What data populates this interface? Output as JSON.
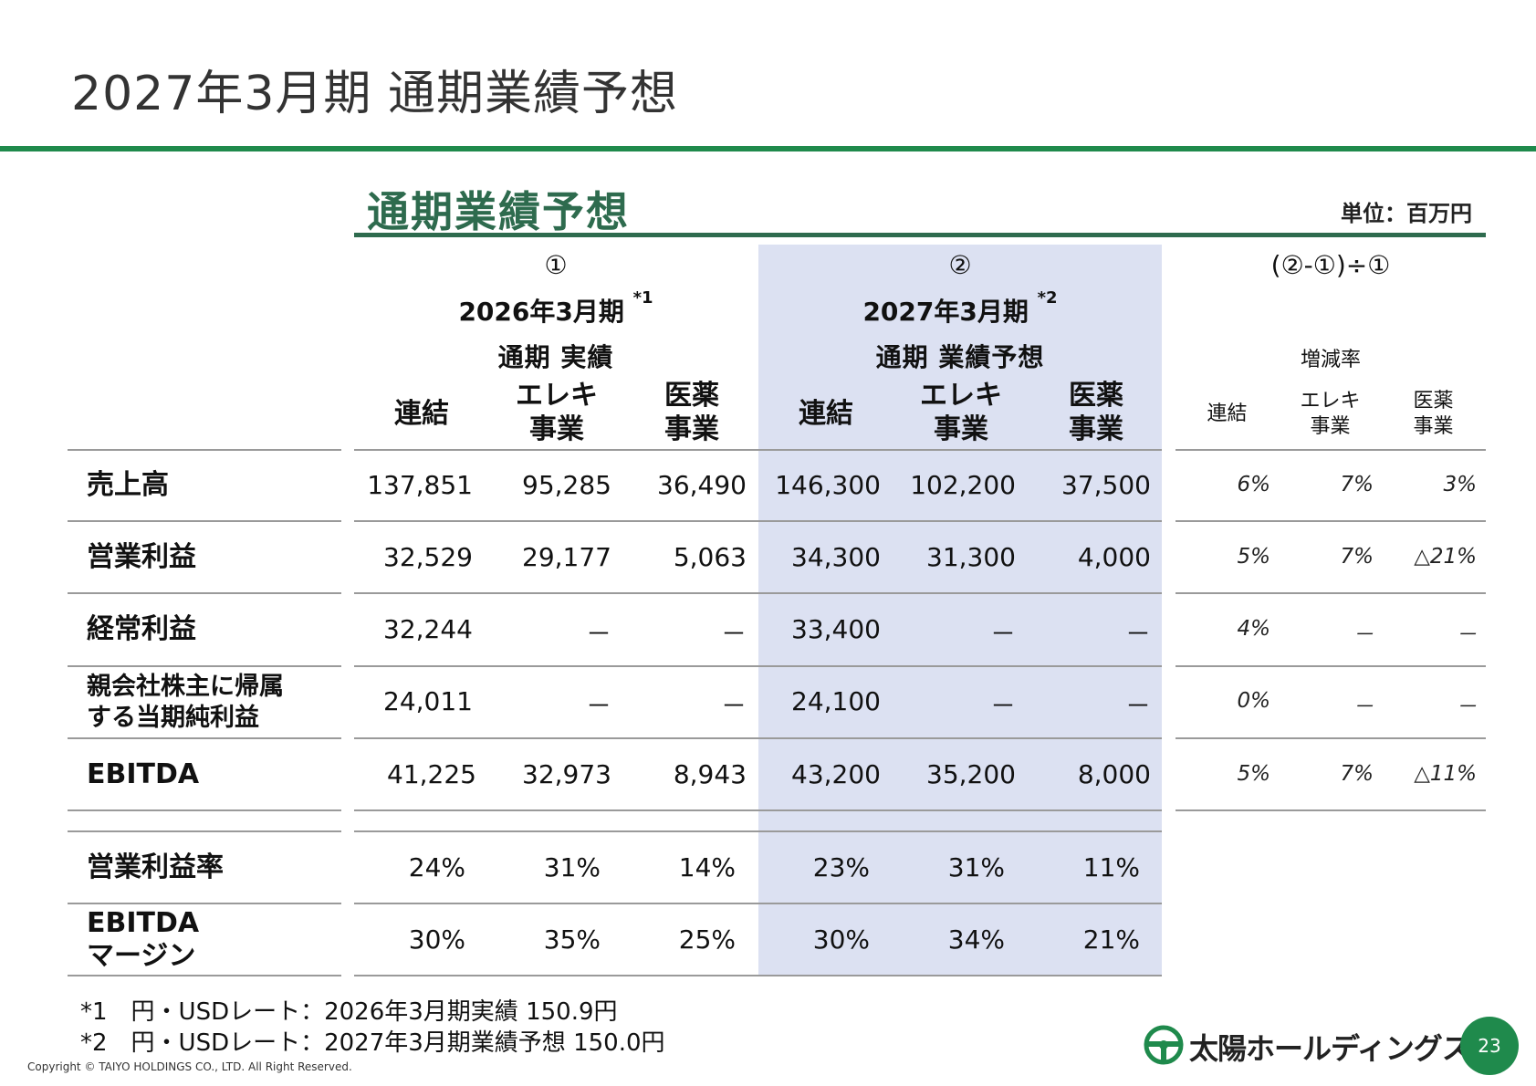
{
  "page_title": "2027年3月期 通期業績予想",
  "section_title": "通期業績予想",
  "unit": "単位：百万円",
  "header": {
    "group1": {
      "circle": "①",
      "period": "2026年3月期",
      "note": "*1",
      "sub": "通期 実績"
    },
    "group2": {
      "circle": "②",
      "period": "2027年3月期",
      "note": "*2",
      "sub": "通期 業績予想"
    },
    "group3": {
      "formula": "(②-①)÷①",
      "sub": "増減率"
    },
    "col_consolidated": "連結",
    "col_elec_1": "エレキ",
    "col_elec_2": "事業",
    "col_med_1": "医薬",
    "col_med_2": "事業"
  },
  "rows": [
    {
      "label": "売上高",
      "v": [
        "137,851",
        "95,285",
        "36,490",
        "146,300",
        "102,200",
        "37,500"
      ],
      "chg": [
        "6%",
        "7%",
        "3%"
      ]
    },
    {
      "label": "営業利益",
      "v": [
        "32,529",
        "29,177",
        "5,063",
        "34,300",
        "31,300",
        "4,000"
      ],
      "chg": [
        "5%",
        "7%",
        "△21%"
      ]
    },
    {
      "label": "経常利益",
      "v": [
        "32,244",
        "－",
        "－",
        "33,400",
        "－",
        "－"
      ],
      "chg": [
        "4%",
        "－",
        "－"
      ]
    },
    {
      "label_1": "親会社株主に帰属",
      "label_2": "する当期純利益",
      "v": [
        "24,011",
        "－",
        "－",
        "24,100",
        "－",
        "－"
      ],
      "chg": [
        "0%",
        "－",
        "－"
      ]
    },
    {
      "label": "EBITDA",
      "v": [
        "41,225",
        "32,973",
        "8,943",
        "43,200",
        "35,200",
        "8,000"
      ],
      "chg": [
        "5%",
        "7%",
        "△11%"
      ]
    }
  ],
  "margin_rows": [
    {
      "label": "営業利益率",
      "v": [
        "24%",
        "31%",
        "14%",
        "23%",
        "31%",
        "11%"
      ]
    },
    {
      "label_1": "EBITDA",
      "label_2": "マージン",
      "v": [
        "30%",
        "35%",
        "25%",
        "30%",
        "34%",
        "21%"
      ]
    }
  ],
  "footnotes": [
    "*1　円・USDレート：2026年3月期実績 150.9円",
    "*2　円・USDレート：2027年3月期業績予想 150.0円"
  ],
  "copyright": "Copyright © TAIYO HOLDINGS CO., LTD.  All Right Reserved.",
  "logo_text": "太陽ホールディングス",
  "page_number": "23",
  "colors": {
    "accent_green": "#1f8a4c",
    "section_green": "#2e6b4e",
    "band_blue": "#dce1f2"
  }
}
